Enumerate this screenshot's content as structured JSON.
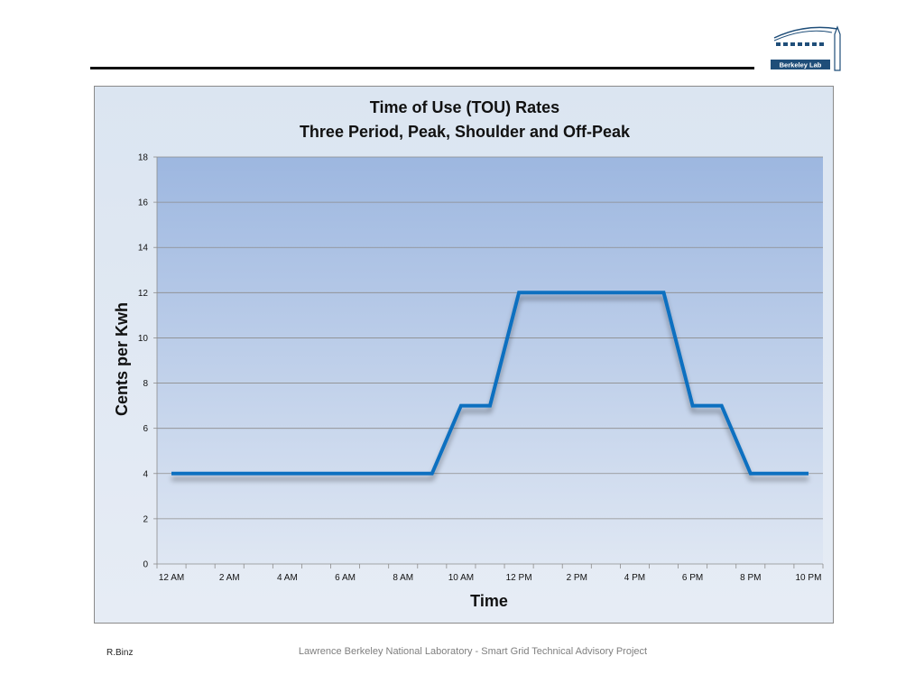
{
  "logo": {
    "text": "Berkeley Lab",
    "icon": "berkeley-lab-logo"
  },
  "footer": {
    "author": "R.Binz",
    "caption": "Lawrence Berkeley National Laboratory - Smart Grid Technical Advisory Project"
  },
  "colors": {
    "line": "#0e70c0",
    "plot_top": "#9db7e0",
    "plot_bottom": "#dfe7f3",
    "logo_blue": "#1f4e79"
  },
  "chart_data": {
    "type": "line",
    "title": [
      "Time of Use (TOU) Rates",
      "Three Period, Peak, Shoulder and Off-Peak"
    ],
    "xlabel": "Time",
    "ylabel": "Cents per Kwh",
    "ylim": [
      0,
      18
    ],
    "yticks": [
      0,
      2,
      4,
      6,
      8,
      10,
      12,
      14,
      16,
      18
    ],
    "xlim": [
      -0.5,
      22.5
    ],
    "xticks": [
      {
        "v": 0,
        "label": "12 AM"
      },
      {
        "v": 2,
        "label": "2 AM"
      },
      {
        "v": 4,
        "label": "4 AM"
      },
      {
        "v": 6,
        "label": "6 AM"
      },
      {
        "v": 8,
        "label": "8 AM"
      },
      {
        "v": 10,
        "label": "10 AM"
      },
      {
        "v": 12,
        "label": "12 PM"
      },
      {
        "v": 14,
        "label": "2 PM"
      },
      {
        "v": 16,
        "label": "4 PM"
      },
      {
        "v": 18,
        "label": "6 PM"
      },
      {
        "v": 20,
        "label": "8 PM"
      },
      {
        "v": 22,
        "label": "10 PM"
      }
    ],
    "grid": true,
    "series": [
      {
        "x": [
          0,
          9,
          10,
          11,
          12,
          13,
          14,
          15,
          16,
          17,
          18,
          19,
          20,
          21,
          22
        ],
        "y": [
          4,
          4,
          7,
          7,
          12,
          12,
          12,
          12,
          12,
          12,
          7,
          7,
          4,
          4,
          4
        ]
      }
    ]
  }
}
